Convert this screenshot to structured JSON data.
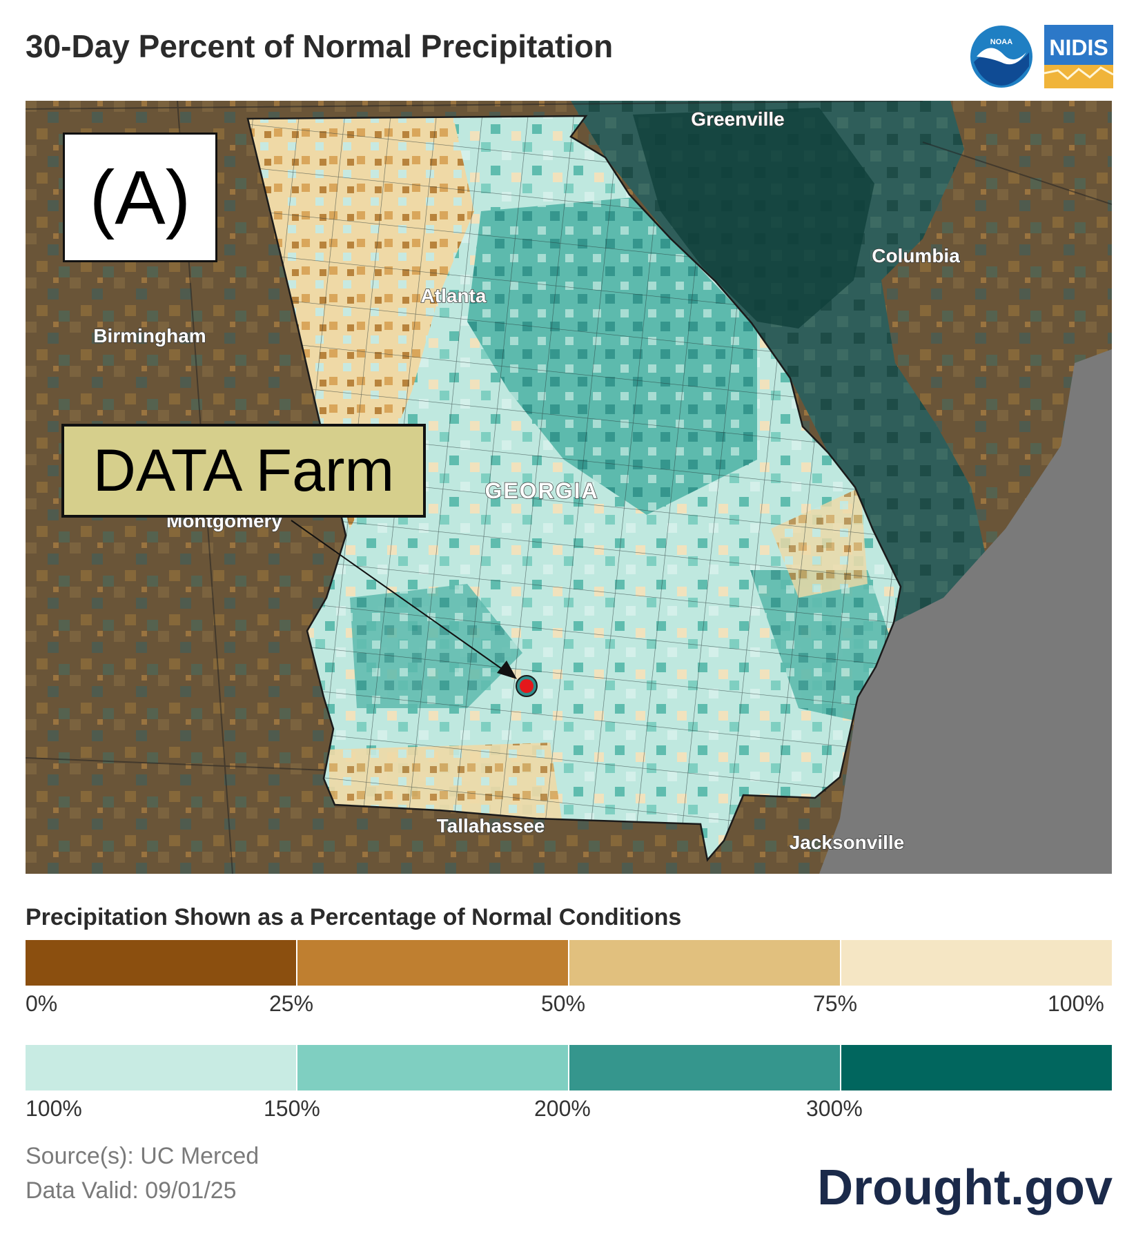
{
  "header": {
    "title": "30-Day Percent of Normal Precipitation",
    "logos": [
      {
        "name": "noaa-logo",
        "text": "NOAA"
      },
      {
        "name": "nidis-logo",
        "text": "NIDIS"
      }
    ]
  },
  "map": {
    "panel_label": "(A)",
    "callout_label": "DATA Farm",
    "region_label": "GEORGIA",
    "cities": [
      "Greenville",
      "Columbia",
      "Atlanta",
      "Birmingham",
      "Montgomery",
      "Tallahassee",
      "Jacksonville"
    ],
    "colors": {
      "dry_brown": "#5e4a33",
      "outside_teal": "#3f5e5a",
      "ocean": "#7a7a7a",
      "marker": "#e5181b"
    }
  },
  "legend": {
    "title": "Precipitation Shown as a Percentage of Normal Conditions",
    "dry_colors": [
      "#8b4f0f",
      "#bf7f30",
      "#e1c07e",
      "#f5e6c4"
    ],
    "dry_ticks": [
      "0%",
      "25%",
      "50%",
      "75%",
      "100%"
    ],
    "wet_colors": [
      "#c8ebe3",
      "#7fcfc1",
      "#35968d",
      "#01665e"
    ],
    "wet_ticks": [
      "100%",
      "150%",
      "200%",
      "300%"
    ]
  },
  "footer": {
    "source": "Source(s): UC Merced",
    "valid": "Data Valid: 09/01/25",
    "brand": "Drought.gov"
  }
}
